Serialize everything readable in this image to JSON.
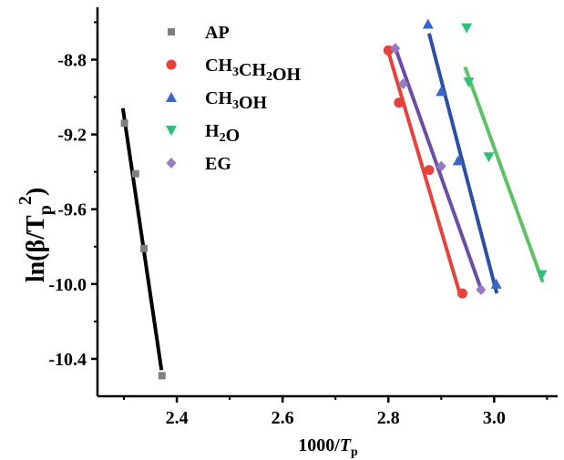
{
  "chart_data": {
    "type": "scatter",
    "xlabel": {
      "main": "1000/",
      "ital": "T",
      "sub": "p"
    },
    "ylabel": {
      "main": "ln(β/",
      "ital": "T",
      "sub": "p",
      "sup": "2",
      "close": ")"
    },
    "xlim": [
      2.25,
      3.12
    ],
    "ylim": [
      -10.6,
      -8.52
    ],
    "x_ticks": [
      "2.4",
      "2.6",
      "2.8",
      "3.0"
    ],
    "x_tick_values": [
      2.4,
      2.6,
      2.8,
      3.0
    ],
    "y_ticks": [
      "-8.8",
      "-9.2",
      "-9.6",
      "-10.0",
      "-10.4"
    ],
    "y_tick_values": [
      -8.8,
      -9.2,
      -9.6,
      -10.0,
      -10.4
    ],
    "grid": false,
    "legend_position": "top-left-center",
    "series": [
      {
        "key": "ap",
        "name_parts": [
          {
            "t": "AP"
          }
        ],
        "marker": "square",
        "marker_color": "#7f7f7f",
        "line_color": "#000000",
        "points": [
          [
            2.301,
            -9.14
          ],
          [
            2.322,
            -9.41
          ],
          [
            2.338,
            -9.81
          ],
          [
            2.372,
            -10.49
          ]
        ],
        "fit": [
          [
            2.298,
            -9.06
          ],
          [
            2.371,
            -10.46
          ]
        ]
      },
      {
        "key": "ethanol",
        "name_parts": [
          {
            "t": "CH"
          },
          {
            "t": "3",
            "sub": true
          },
          {
            "t": "CH"
          },
          {
            "t": "2",
            "sub": true
          },
          {
            "t": "OH"
          }
        ],
        "marker": "circle",
        "marker_color": "#e8413c",
        "line_color": "#e8413c",
        "points": [
          [
            2.8,
            -8.75
          ],
          [
            2.82,
            -9.03
          ],
          [
            2.877,
            -9.39
          ],
          [
            2.94,
            -10.05
          ]
        ],
        "fit": [
          [
            2.797,
            -8.73
          ],
          [
            2.936,
            -10.06
          ]
        ]
      },
      {
        "key": "methanol",
        "name_parts": [
          {
            "t": "CH"
          },
          {
            "t": "3",
            "sub": true
          },
          {
            "t": "OH"
          }
        ],
        "marker": "triangle-up",
        "marker_color": "#3a66c4",
        "line_color": "#2b4fa7",
        "points": [
          [
            2.875,
            -8.61
          ],
          [
            2.9,
            -8.97
          ],
          [
            2.932,
            -9.34
          ],
          [
            3.004,
            -10.0
          ]
        ],
        "fit": [
          [
            2.877,
            -8.66
          ],
          [
            3.005,
            -10.05
          ]
        ]
      },
      {
        "key": "water",
        "name_parts": [
          {
            "t": "H"
          },
          {
            "t": "2",
            "sub": true
          },
          {
            "t": "O"
          }
        ],
        "marker": "triangle-down",
        "marker_color": "#2ec07a",
        "line_color": "#5cc264",
        "points": [
          [
            2.948,
            -8.63
          ],
          [
            2.952,
            -8.92
          ],
          [
            2.99,
            -9.32
          ],
          [
            3.09,
            -9.95
          ]
        ],
        "fit": [
          [
            2.945,
            -8.84
          ],
          [
            3.092,
            -9.99
          ]
        ]
      },
      {
        "key": "eg",
        "name_parts": [
          {
            "t": "EG"
          }
        ],
        "marker": "diamond",
        "marker_color": "#9a79c4",
        "line_color": "#6a4ea6",
        "points": [
          [
            2.813,
            -8.74
          ],
          [
            2.828,
            -8.93
          ],
          [
            2.9,
            -9.37
          ],
          [
            2.975,
            -10.03
          ]
        ],
        "fit": [
          [
            2.811,
            -8.72
          ],
          [
            2.978,
            -10.05
          ]
        ]
      }
    ]
  }
}
